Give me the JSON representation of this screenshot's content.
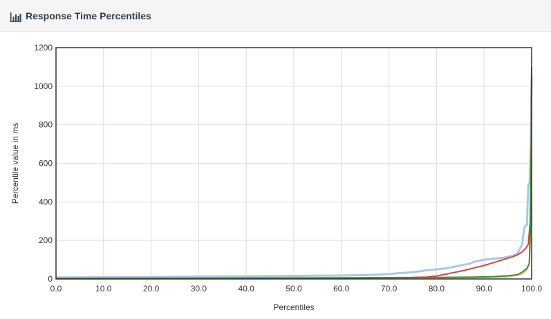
{
  "header": {
    "title": "Response Time Percentiles",
    "icon": "bar-chart-icon"
  },
  "chart_data": {
    "type": "line",
    "title": "",
    "xlabel": "Percentiles",
    "ylabel": "Percentile value in ms",
    "xlim": [
      0,
      100
    ],
    "ylim": [
      0,
      1200
    ],
    "x_ticks": [
      "0.0",
      "10.0",
      "20.0",
      "30.0",
      "40.0",
      "50.0",
      "60.0",
      "70.0",
      "80.0",
      "90.0",
      "100.0"
    ],
    "y_ticks": [
      "0",
      "200",
      "400",
      "600",
      "800",
      "1000",
      "1200"
    ],
    "grid": true,
    "legend": "none",
    "series": [
      {
        "color": "#a9c8e8",
        "points": [
          [
            0,
            8
          ],
          [
            10,
            9
          ],
          [
            20,
            10
          ],
          [
            30,
            12
          ],
          [
            40,
            14
          ],
          [
            50,
            16
          ],
          [
            60,
            18
          ],
          [
            65,
            20
          ],
          [
            70,
            25
          ],
          [
            72,
            30
          ],
          [
            75,
            35
          ],
          [
            78,
            45
          ],
          [
            80,
            50
          ],
          [
            82,
            55
          ],
          [
            85,
            70
          ],
          [
            87,
            80
          ],
          [
            88,
            90
          ],
          [
            90,
            100
          ],
          [
            92,
            105
          ],
          [
            94,
            110
          ],
          [
            96,
            120
          ],
          [
            97,
            130
          ],
          [
            98,
            180
          ],
          [
            98.5,
            270
          ],
          [
            99,
            280
          ],
          [
            99.3,
            490
          ],
          [
            99.6,
            500
          ],
          [
            99.8,
            700
          ],
          [
            100,
            1050
          ]
        ]
      },
      {
        "color": "#e6c88a",
        "points": [
          [
            0,
            0
          ],
          [
            20,
            1
          ],
          [
            40,
            2
          ],
          [
            60,
            3
          ],
          [
            70,
            4
          ],
          [
            80,
            5
          ],
          [
            90,
            7
          ],
          [
            95,
            10
          ],
          [
            98,
            25
          ],
          [
            99,
            45
          ],
          [
            99.5,
            80
          ],
          [
            99.8,
            200
          ],
          [
            100,
            320
          ]
        ]
      },
      {
        "color": "#d94040",
        "points": [
          [
            0,
            3
          ],
          [
            20,
            4
          ],
          [
            40,
            5
          ],
          [
            60,
            6
          ],
          [
            70,
            7
          ],
          [
            75,
            8
          ],
          [
            78,
            10
          ],
          [
            80,
            15
          ],
          [
            82,
            25
          ],
          [
            84,
            35
          ],
          [
            86,
            45
          ],
          [
            88,
            58
          ],
          [
            90,
            70
          ],
          [
            92,
            85
          ],
          [
            94,
            100
          ],
          [
            96,
            115
          ],
          [
            97,
            125
          ],
          [
            98,
            140
          ],
          [
            98.8,
            160
          ],
          [
            99.3,
            180
          ],
          [
            99.7,
            300
          ],
          [
            99.9,
            700
          ],
          [
            100,
            1100
          ]
        ]
      },
      {
        "color": "#3a8a3a",
        "points": [
          [
            0,
            2
          ],
          [
            20,
            3
          ],
          [
            40,
            4
          ],
          [
            60,
            5
          ],
          [
            70,
            6
          ],
          [
            80,
            8
          ],
          [
            88,
            10
          ],
          [
            92,
            12
          ],
          [
            95,
            16
          ],
          [
            97,
            22
          ],
          [
            98,
            35
          ],
          [
            99,
            55
          ],
          [
            99.5,
            80
          ],
          [
            99.8,
            300
          ],
          [
            99.9,
            600
          ],
          [
            100,
            1080
          ]
        ]
      }
    ]
  }
}
